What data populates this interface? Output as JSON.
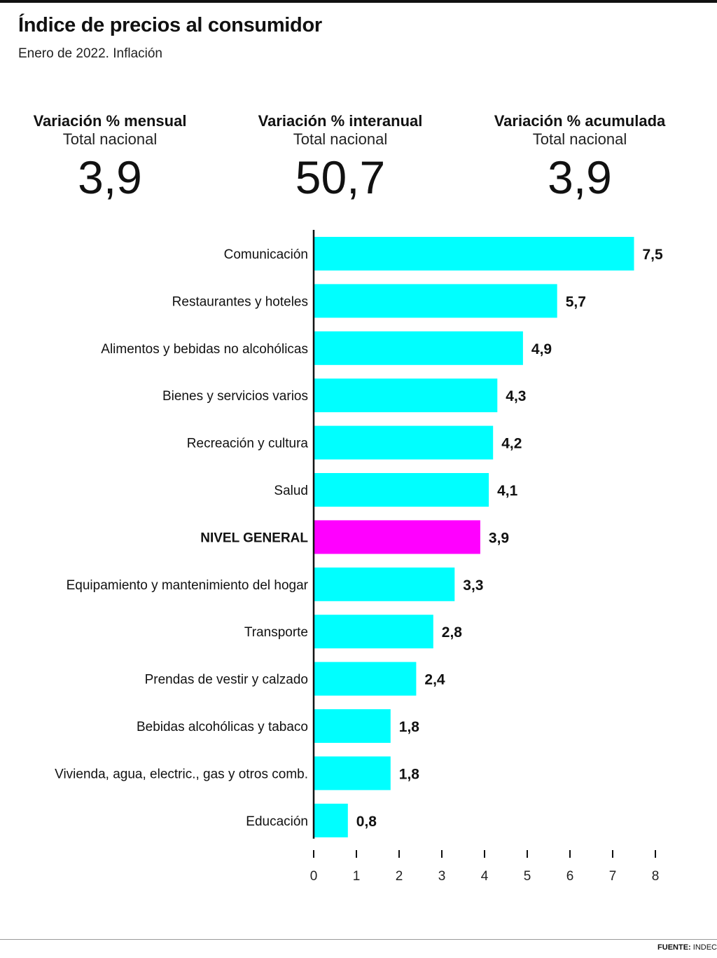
{
  "header": {
    "title": "Índice de precios al consumidor",
    "subtitle": "Enero de 2022. Inflación"
  },
  "kpis": [
    {
      "label": "Variación % mensual",
      "sub": "Total nacional",
      "value": "3,9"
    },
    {
      "label": "Variación % interanual",
      "sub": "Total nacional",
      "value": "50,7"
    },
    {
      "label": "Variación % acumulada",
      "sub": "Total nacional",
      "value": "3,9"
    }
  ],
  "chart_data": {
    "type": "bar",
    "orientation": "horizontal",
    "categories": [
      "Comunicación",
      "Restaurantes y hoteles",
      "Alimentos y bebidas no alcohólicas",
      "Bienes y servicios varios",
      "Recreación y cultura",
      "Salud",
      "NIVEL GENERAL",
      "Equipamiento y mantenimiento del hogar",
      "Transporte",
      "Prendas de vestir y calzado",
      "Bebidas alcohólicas y tabaco",
      "Vivienda, agua, electric., gas y otros comb.",
      "Educación"
    ],
    "values": [
      7.5,
      5.7,
      4.9,
      4.3,
      4.2,
      4.1,
      3.9,
      3.3,
      2.8,
      2.4,
      1.8,
      1.8,
      0.8
    ],
    "value_labels": [
      "7,5",
      "5,7",
      "4,9",
      "4,3",
      "4,2",
      "4,1",
      "3,9",
      "3,3",
      "2,8",
      "2,4",
      "1,8",
      "1,8",
      "0,8"
    ],
    "highlight_category": "NIVEL GENERAL",
    "xticks": [
      "0",
      "1",
      "2",
      "3",
      "4",
      "5",
      "6",
      "7",
      "8"
    ],
    "xlim": [
      0,
      8
    ],
    "grid": false,
    "colors": {
      "bar": "#00ffff",
      "highlight": "#ff00ff"
    }
  },
  "footer": {
    "source_label": "FUENTE:",
    "source_value": "INDEC"
  }
}
